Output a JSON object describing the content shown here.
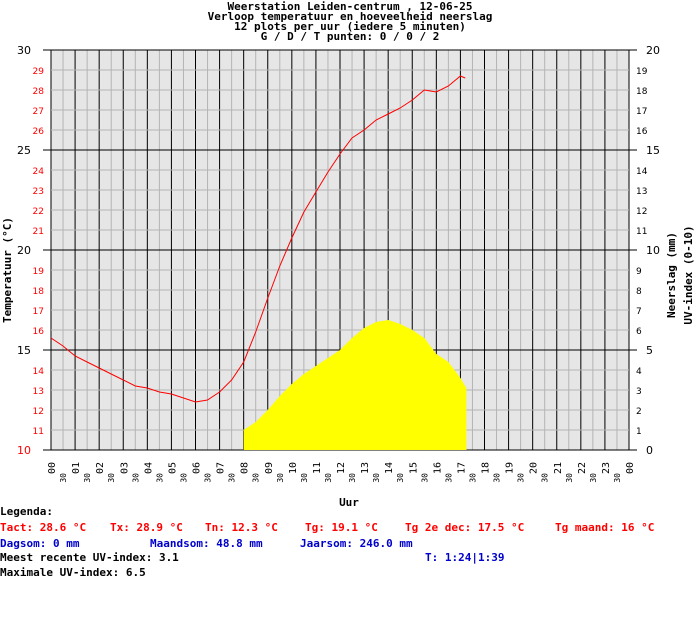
{
  "header": {
    "line1": "Weerstation Leiden-centrum , 12-06-25",
    "line2": "Verloop temperatuur en hoeveelheid neerslag",
    "line3": "12 plots per uur (iedere 5 minuten)",
    "line4": "G / D / T punten: 0 / 0 / 2"
  },
  "chart_data": {
    "type": "line",
    "xlabel": "Uur",
    "ylabel": "Temperatuur (°C)",
    "y2label_rain": "Neerslag (mm)",
    "y2label_uv": "UV-index (0-10)",
    "xlim": [
      0,
      24
    ],
    "ylim": [
      10,
      30
    ],
    "y2lim": [
      0,
      20
    ],
    "grid": true,
    "hour_labels": [
      "00",
      "01",
      "02",
      "03",
      "04",
      "05",
      "06",
      "07",
      "08",
      "09",
      "10",
      "11",
      "12",
      "13",
      "14",
      "15",
      "16",
      "17",
      "18",
      "19",
      "20",
      "21",
      "22",
      "23",
      "00"
    ],
    "half_label": "30",
    "y_ticks": [
      "10",
      "11",
      "12",
      "13",
      "14",
      "15",
      "16",
      "17",
      "18",
      "19",
      "20",
      "21",
      "22",
      "23",
      "24",
      "25",
      "26",
      "27",
      "28",
      "29",
      "30"
    ],
    "y2_ticks": [
      "0",
      "1",
      "2",
      "3",
      "4",
      "5",
      "6",
      "7",
      "8",
      "9",
      "10",
      "11",
      "12",
      "13",
      "14",
      "15",
      "16",
      "17",
      "18",
      "19",
      "20"
    ],
    "colors": {
      "temperature": "#ff0000",
      "uv": "#ffff00",
      "axis_left": "#ff0000"
    },
    "series": [
      {
        "name": "Temperatuur",
        "x": [
          0,
          0.5,
          1,
          1.5,
          2,
          2.5,
          3,
          3.5,
          4,
          4.5,
          5,
          5.5,
          6,
          6.5,
          7,
          7.5,
          8,
          8.5,
          9,
          9.5,
          10,
          10.5,
          11,
          11.5,
          12,
          12.5,
          13,
          13.5,
          14,
          14.5,
          15,
          15.5,
          16,
          16.5,
          17,
          17.2
        ],
        "values": [
          15.6,
          15.2,
          14.7,
          14.4,
          14.1,
          13.8,
          13.5,
          13.2,
          13.1,
          12.9,
          12.8,
          12.6,
          12.4,
          12.5,
          12.9,
          13.5,
          14.4,
          15.9,
          17.6,
          19.2,
          20.6,
          21.9,
          22.9,
          23.9,
          24.8,
          25.6,
          26.0,
          26.5,
          26.8,
          27.1,
          27.5,
          28.0,
          27.9,
          28.2,
          28.7,
          28.6
        ]
      },
      {
        "name": "UV-index",
        "x": [
          8.0,
          8.5,
          9,
          9.5,
          10,
          10.5,
          11,
          11.5,
          12,
          12.5,
          13,
          13.5,
          14,
          14.5,
          15,
          15.5,
          16,
          16.5,
          17,
          17.25
        ],
        "values": [
          1.0,
          1.4,
          2.0,
          2.7,
          3.3,
          3.8,
          4.2,
          4.6,
          5.0,
          5.6,
          6.1,
          6.4,
          6.5,
          6.3,
          6.0,
          5.6,
          4.8,
          4.4,
          3.6,
          3.1
        ]
      }
    ]
  },
  "legend": {
    "title": "Legenda:",
    "tact": "Tact: 28.6 °C",
    "tx": "Tx: 28.9 °C",
    "tn": "Tn: 12.3 °C",
    "tg": "Tg: 19.1 °C",
    "tg_dec": "Tg 2e dec: 17.5 °C",
    "tg_maand": "Tg maand: 16 °C",
    "dagsom": "Dagsom: 0 mm",
    "maandsom": "Maandsom: 48.8 mm",
    "jaarsom": "Jaarsom: 246.0 mm",
    "uv_recent": "Meest recente UV-index: 3.1",
    "t_time": "T: 1:24|1:39",
    "uv_max": "Maximale UV-index: 6.5"
  }
}
